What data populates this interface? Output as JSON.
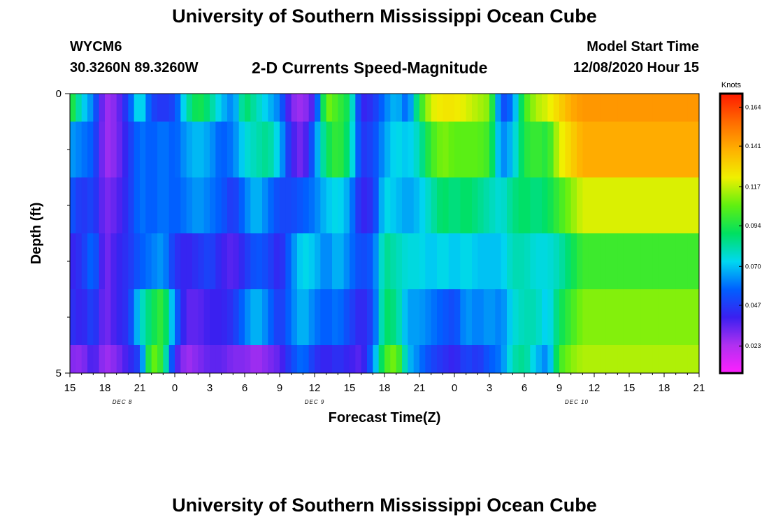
{
  "header": {
    "title_top": "University of Southern Mississippi Ocean Cube",
    "title_bottom": "University of Southern Mississippi Ocean Cube",
    "station_id": "WYCM6",
    "station_coords": "30.3260N 89.3260W",
    "plot_title": "2-D Currents Speed-Magnitude",
    "model_label": "Model Start Time",
    "model_time": "12/08/2020 Hour 15"
  },
  "chart_data": {
    "type": "heatmap",
    "title": "2-D Currents Speed-Magnitude",
    "xlabel": "Forecast Time(Z)",
    "ylabel": "Depth (ft)",
    "y_tick_labels": [
      "0",
      "5"
    ],
    "ylim": [
      0,
      5
    ],
    "x_tick_labels": [
      "15",
      "18",
      "21",
      "0",
      "3",
      "6",
      "9",
      "12",
      "15",
      "18",
      "21",
      "0",
      "3",
      "6",
      "9",
      "12",
      "15",
      "18",
      "21"
    ],
    "x_hour_start": 15,
    "x_hour_end": 69,
    "day_labels": [
      {
        "text": "DEC 8",
        "hour": 19.5
      },
      {
        "text": "DEC 9",
        "hour": 36
      },
      {
        "text": "DEC 10",
        "hour": 58.5
      }
    ],
    "colorbar": {
      "unit": "Knots",
      "vmin": 0.007,
      "vmax": 0.172,
      "tick_labels": [
        "0.164",
        "0.141",
        "0.117",
        "0.094",
        "0.070",
        "0.047",
        "0.023"
      ],
      "tick_values": [
        0.164,
        0.141,
        0.117,
        0.094,
        0.07,
        0.047,
        0.023
      ],
      "colors": [
        "#ff20ff",
        "#b030f0",
        "#3a20f0",
        "#0060ff",
        "#00d8f0",
        "#00e060",
        "#60f010",
        "#f0f000",
        "#ffb000",
        "#ff6a00",
        "#ff1a00"
      ]
    },
    "layers": [
      {
        "depth_top": 0,
        "depth_bottom": 0.5,
        "row": 0
      },
      {
        "depth_top": 0.5,
        "depth_bottom": 1.5,
        "row": 1
      },
      {
        "depth_top": 1.5,
        "depth_bottom": 2.5,
        "row": 2
      },
      {
        "depth_top": 2.5,
        "depth_bottom": 3.5,
        "row": 3
      },
      {
        "depth_top": 3.5,
        "depth_bottom": 4.5,
        "row": 4
      },
      {
        "depth_top": 4.5,
        "depth_bottom": 5,
        "row": 5
      }
    ],
    "keyframes": [
      {
        "hour": 15,
        "values": [
          0.1,
          0.065,
          0.055,
          0.04,
          0.045,
          0.03
        ]
      },
      {
        "hour": 16,
        "values": [
          0.075,
          0.06,
          0.045,
          0.045,
          0.04,
          0.028
        ]
      },
      {
        "hour": 17,
        "values": [
          0.06,
          0.055,
          0.05,
          0.06,
          0.05,
          0.04
        ]
      },
      {
        "hour": 18,
        "values": [
          0.025,
          0.025,
          0.03,
          0.03,
          0.03,
          0.025
        ]
      },
      {
        "hour": 19,
        "values": [
          0.03,
          0.03,
          0.035,
          0.04,
          0.04,
          0.03
        ]
      },
      {
        "hour": 20,
        "values": [
          0.05,
          0.045,
          0.045,
          0.045,
          0.045,
          0.04
        ]
      },
      {
        "hour": 21,
        "values": [
          0.08,
          0.06,
          0.06,
          0.055,
          0.075,
          0.05
        ]
      },
      {
        "hour": 22,
        "values": [
          0.05,
          0.055,
          0.055,
          0.06,
          0.09,
          0.11
        ]
      },
      {
        "hour": 23,
        "values": [
          0.045,
          0.06,
          0.06,
          0.065,
          0.1,
          0.095
        ]
      },
      {
        "hour": 24,
        "values": [
          0.05,
          0.055,
          0.055,
          0.045,
          0.06,
          0.04
        ]
      },
      {
        "hour": 25,
        "values": [
          0.08,
          0.065,
          0.06,
          0.04,
          0.035,
          0.025
        ]
      },
      {
        "hour": 26,
        "values": [
          0.095,
          0.07,
          0.065,
          0.045,
          0.035,
          0.03
        ]
      },
      {
        "hour": 27,
        "values": [
          0.085,
          0.065,
          0.06,
          0.05,
          0.04,
          0.035
        ]
      },
      {
        "hour": 28,
        "values": [
          0.07,
          0.055,
          0.055,
          0.04,
          0.04,
          0.035
        ]
      },
      {
        "hour": 29,
        "values": [
          0.06,
          0.06,
          0.045,
          0.035,
          0.045,
          0.03
        ]
      },
      {
        "hour": 30,
        "values": [
          0.09,
          0.075,
          0.06,
          0.045,
          0.06,
          0.03
        ]
      },
      {
        "hour": 31,
        "values": [
          0.08,
          0.08,
          0.07,
          0.055,
          0.07,
          0.025
        ]
      },
      {
        "hour": 32,
        "values": [
          0.07,
          0.085,
          0.06,
          0.05,
          0.06,
          0.03
        ]
      },
      {
        "hour": 33,
        "values": [
          0.06,
          0.07,
          0.05,
          0.04,
          0.045,
          0.035
        ]
      },
      {
        "hour": 34,
        "values": [
          0.03,
          0.04,
          0.05,
          0.06,
          0.06,
          0.05
        ]
      },
      {
        "hour": 35,
        "values": [
          0.025,
          0.03,
          0.055,
          0.075,
          0.07,
          0.06
        ]
      },
      {
        "hour": 36,
        "values": [
          0.04,
          0.06,
          0.06,
          0.07,
          0.06,
          0.045
        ]
      },
      {
        "hour": 37,
        "values": [
          0.11,
          0.09,
          0.07,
          0.06,
          0.055,
          0.04
        ]
      },
      {
        "hour": 38,
        "values": [
          0.1,
          0.1,
          0.075,
          0.07,
          0.06,
          0.045
        ]
      },
      {
        "hour": 39,
        "values": [
          0.09,
          0.085,
          0.065,
          0.06,
          0.05,
          0.04
        ]
      },
      {
        "hour": 40,
        "values": [
          0.04,
          0.045,
          0.04,
          0.05,
          0.04,
          0.035
        ]
      },
      {
        "hour": 41,
        "values": [
          0.045,
          0.05,
          0.045,
          0.055,
          0.05,
          0.06
        ]
      },
      {
        "hour": 42,
        "values": [
          0.06,
          0.065,
          0.075,
          0.085,
          0.09,
          0.1
        ]
      },
      {
        "hour": 43,
        "values": [
          0.07,
          0.075,
          0.07,
          0.08,
          0.085,
          0.11
        ]
      },
      {
        "hour": 44,
        "values": [
          0.055,
          0.07,
          0.065,
          0.075,
          0.065,
          0.07
        ]
      },
      {
        "hour": 45,
        "values": [
          0.095,
          0.08,
          0.07,
          0.075,
          0.065,
          0.06
        ]
      },
      {
        "hour": 46,
        "values": [
          0.12,
          0.1,
          0.08,
          0.07,
          0.06,
          0.05
        ]
      },
      {
        "hour": 47,
        "values": [
          0.125,
          0.11,
          0.09,
          0.075,
          0.055,
          0.045
        ]
      },
      {
        "hour": 48,
        "values": [
          0.125,
          0.105,
          0.085,
          0.07,
          0.05,
          0.04
        ]
      },
      {
        "hour": 49,
        "values": [
          0.12,
          0.105,
          0.09,
          0.075,
          0.065,
          0.05
        ]
      },
      {
        "hour": 50,
        "values": [
          0.115,
          0.105,
          0.085,
          0.07,
          0.06,
          0.045
        ]
      },
      {
        "hour": 51,
        "values": [
          0.11,
          0.1,
          0.08,
          0.07,
          0.065,
          0.055
        ]
      },
      {
        "hour": 52,
        "values": [
          0.05,
          0.06,
          0.075,
          0.07,
          0.06,
          0.06
        ]
      },
      {
        "hour": 53,
        "values": [
          0.06,
          0.07,
          0.085,
          0.08,
          0.075,
          0.08
        ]
      },
      {
        "hour": 54,
        "values": [
          0.1,
          0.095,
          0.09,
          0.08,
          0.08,
          0.085
        ]
      },
      {
        "hour": 55,
        "values": [
          0.115,
          0.1,
          0.085,
          0.075,
          0.08,
          0.07
        ]
      },
      {
        "hour": 56,
        "values": [
          0.12,
          0.095,
          0.09,
          0.075,
          0.07,
          0.06
        ]
      },
      {
        "hour": 57,
        "values": [
          0.13,
          0.12,
          0.1,
          0.08,
          0.09,
          0.1
        ]
      },
      {
        "hour": 58,
        "values": [
          0.14,
          0.13,
          0.11,
          0.09,
          0.1,
          0.11
        ]
      },
      {
        "hour": 59,
        "values": [
          0.145,
          0.14,
          0.12,
          0.1,
          0.11,
          0.115
        ]
      }
    ]
  }
}
